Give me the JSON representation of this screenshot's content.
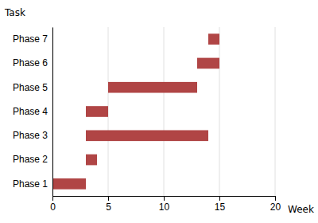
{
  "chart_data": {
    "type": "gantt",
    "orientation": "horizontal",
    "categories": [
      "Phase 1",
      "Phase 2",
      "Phase 3",
      "Phase 4",
      "Phase 5",
      "Phase 6",
      "Phase 7"
    ],
    "starts": [
      0,
      3,
      3,
      3,
      5,
      13,
      14
    ],
    "values": [
      3,
      1,
      11,
      2,
      8,
      2,
      1
    ],
    "color": "#b04545",
    "x_label": "Week",
    "y_label": "Task",
    "xlim": [
      0,
      20
    ],
    "xticks": [
      0,
      5,
      10,
      15,
      20
    ],
    "grid": true
  }
}
